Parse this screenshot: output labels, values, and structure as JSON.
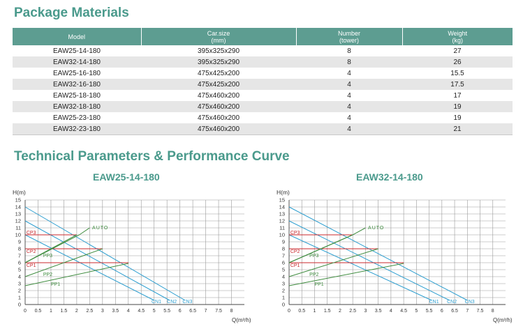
{
  "package": {
    "title": "Package Materials",
    "headers": [
      {
        "l1": "Model",
        "l2": ""
      },
      {
        "l1": "Car.size",
        "l2": "(mm)"
      },
      {
        "l1": "Number",
        "l2": "(tower)"
      },
      {
        "l1": "Weight",
        "l2": "(kg)"
      }
    ],
    "rows": [
      [
        "EAW25-14-180",
        "395x325x290",
        "8",
        "27"
      ],
      [
        "EAW32-14-180",
        "395x325x290",
        "8",
        "26"
      ],
      [
        "EAW25-16-180",
        "475x425x200",
        "4",
        "15.5"
      ],
      [
        "EAW32-16-180",
        "475x425x200",
        "4",
        "17.5"
      ],
      [
        "EAW25-18-180",
        "475x460x200",
        "4",
        "17"
      ],
      [
        "EAW32-18-180",
        "475x460x200",
        "4",
        "19"
      ],
      [
        "EAW25-23-180",
        "475x460x200",
        "4",
        "19"
      ],
      [
        "EAW32-23-180",
        "475x460x200",
        "4",
        "21"
      ]
    ]
  },
  "technical": {
    "title": "Technical Parameters & Performance Curve"
  },
  "colors": {
    "accent": "#4a9a8c",
    "header_bg": "#5d9d91",
    "cn": "#2f9fd0",
    "cp": "#c8282d",
    "pp": "#3f8c3f",
    "grid": "#9a9a9a"
  },
  "chart_data": [
    {
      "type": "line",
      "title": "EAW25-14-180",
      "ylabel": "H(m)",
      "xlabel": "Q(m³/h)",
      "xlim": [
        0,
        8.5
      ],
      "ylim": [
        0,
        15
      ],
      "xticks": [
        "0",
        "0.5",
        "1",
        "1.5",
        "2",
        "2.5",
        "3",
        "3.5",
        "4",
        "4.5",
        "5",
        "5.5",
        "6",
        "6.5",
        "7",
        "7.5",
        "8"
      ],
      "yticks": [
        "0",
        "1",
        "2",
        "3",
        "4",
        "5",
        "6",
        "7",
        "8",
        "9",
        "10",
        "11",
        "12",
        "13",
        "14",
        "15"
      ],
      "auto_label": "AUTO",
      "auto_label_pos": [
        2.6,
        11
      ],
      "series": [
        {
          "name": "CN1",
          "group": "cn",
          "x": [
            0,
            5.0
          ],
          "y": [
            10,
            0.6
          ],
          "label_at": [
            4.9,
            0.2
          ]
        },
        {
          "name": "CN2",
          "group": "cn",
          "x": [
            0,
            5.6
          ],
          "y": [
            12,
            0.6
          ],
          "label_at": [
            5.5,
            0.2
          ]
        },
        {
          "name": "CN3",
          "group": "cn",
          "x": [
            0,
            6.2
          ],
          "y": [
            14,
            0.6
          ],
          "label_at": [
            6.1,
            0.2
          ]
        },
        {
          "name": "CP3",
          "group": "cp",
          "x": [
            0,
            2.0
          ],
          "y": [
            10,
            10
          ],
          "label_at": [
            0.05,
            10.1
          ]
        },
        {
          "name": "CP2",
          "group": "cp",
          "x": [
            0,
            3.0
          ],
          "y": [
            8,
            8
          ],
          "label_at": [
            0.05,
            7.4
          ]
        },
        {
          "name": "CP1",
          "group": "cp",
          "x": [
            0,
            4.0
          ],
          "y": [
            6,
            6
          ],
          "label_at": [
            0.05,
            5.4
          ]
        },
        {
          "name": "PP3",
          "group": "pp",
          "x": [
            0,
            2.0
          ],
          "y": [
            6,
            10
          ],
          "label_at": [
            0.7,
            6.8
          ]
        },
        {
          "name": "PP2",
          "group": "pp",
          "x": [
            0,
            3.0
          ],
          "y": [
            4,
            8
          ],
          "label_at": [
            0.7,
            4.1
          ]
        },
        {
          "name": "PP1",
          "group": "pp",
          "x": [
            0,
            4.0
          ],
          "y": [
            2.7,
            5.9
          ],
          "label_at": [
            1.0,
            2.7
          ]
        },
        {
          "name": "AUTO",
          "group": "pp",
          "x": [
            0,
            2.1,
            2.5
          ],
          "y": [
            6,
            10,
            11
          ],
          "label_at": null
        }
      ]
    },
    {
      "type": "line",
      "title": "EAW32-14-180",
      "ylabel": "H(m)",
      "xlabel": "Q(m³/h)",
      "xlim": [
        0,
        8.5
      ],
      "ylim": [
        0,
        15
      ],
      "xticks": [
        "0",
        "0.5",
        "1",
        "1.5",
        "2",
        "2.5",
        "3",
        "3.5",
        "4",
        "4.5",
        "5",
        "5.5",
        "6",
        "6.5",
        "7",
        "7.5",
        "8"
      ],
      "yticks": [
        "0",
        "1",
        "2",
        "3",
        "4",
        "5",
        "6",
        "7",
        "8",
        "9",
        "10",
        "11",
        "12",
        "13",
        "14",
        "15"
      ],
      "auto_label": "AUTO",
      "auto_label_pos": [
        3.1,
        11
      ],
      "series": [
        {
          "name": "CN1",
          "group": "cn",
          "x": [
            0,
            5.6
          ],
          "y": [
            10,
            0.6
          ],
          "label_at": [
            5.5,
            0.2
          ]
        },
        {
          "name": "CN2",
          "group": "cn",
          "x": [
            0,
            6.3
          ],
          "y": [
            12,
            0.6
          ],
          "label_at": [
            6.2,
            0.2
          ]
        },
        {
          "name": "CN3",
          "group": "cn",
          "x": [
            0,
            7.0
          ],
          "y": [
            14,
            0.6
          ],
          "label_at": [
            6.9,
            0.2
          ]
        },
        {
          "name": "CP3",
          "group": "cp",
          "x": [
            0,
            2.5
          ],
          "y": [
            10,
            10
          ],
          "label_at": [
            0.05,
            10.1
          ]
        },
        {
          "name": "CP2",
          "group": "cp",
          "x": [
            0,
            3.5
          ],
          "y": [
            8,
            8
          ],
          "label_at": [
            0.05,
            7.4
          ]
        },
        {
          "name": "CP1",
          "group": "cp",
          "x": [
            0,
            4.5
          ],
          "y": [
            6,
            6
          ],
          "label_at": [
            0.05,
            5.4
          ]
        },
        {
          "name": "PP3",
          "group": "pp",
          "x": [
            0,
            2.5
          ],
          "y": [
            6,
            10
          ],
          "label_at": [
            0.8,
            6.8
          ]
        },
        {
          "name": "PP2",
          "group": "pp",
          "x": [
            0,
            3.5
          ],
          "y": [
            4,
            8
          ],
          "label_at": [
            0.8,
            4.1
          ]
        },
        {
          "name": "PP1",
          "group": "pp",
          "x": [
            0,
            4.5
          ],
          "y": [
            2.7,
            5.9
          ],
          "label_at": [
            1.0,
            2.7
          ]
        },
        {
          "name": "AUTO",
          "group": "pp",
          "x": [
            0,
            2.5,
            3.0
          ],
          "y": [
            6,
            10,
            11
          ],
          "label_at": null
        }
      ]
    }
  ]
}
